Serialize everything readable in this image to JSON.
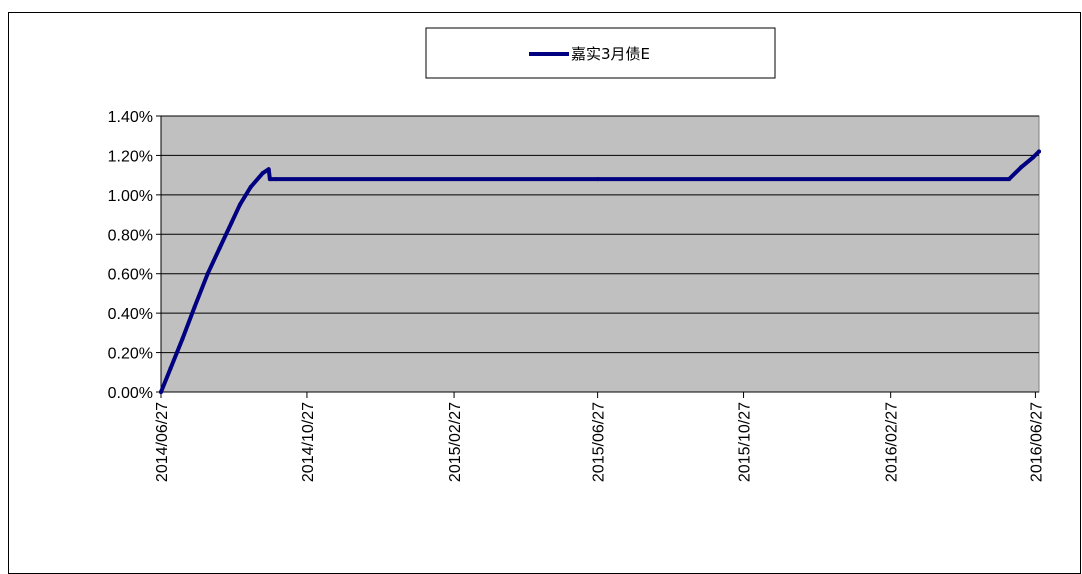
{
  "chart_data": {
    "type": "line",
    "title": "",
    "xlabel": "",
    "ylabel": "",
    "ylim": [
      0,
      1.4
    ],
    "y_ticks": [
      {
        "v": 0.0,
        "label": "0.00%"
      },
      {
        "v": 0.2,
        "label": "0.20%"
      },
      {
        "v": 0.4,
        "label": "0.40%"
      },
      {
        "v": 0.6,
        "label": "0.60%"
      },
      {
        "v": 0.8,
        "label": "0.80%"
      },
      {
        "v": 1.0,
        "label": "1.00%"
      },
      {
        "v": 1.2,
        "label": "1.20%"
      },
      {
        "v": 1.4,
        "label": "1.40%"
      }
    ],
    "xlim": [
      "2014-06-27",
      "2016-06-30"
    ],
    "x_ticks": [
      "2014/06/27",
      "2014/10/27",
      "2015/02/27",
      "2015/06/27",
      "2015/10/27",
      "2016/02/27",
      "2016/06/27"
    ],
    "grid": "horizontal",
    "legend_position": "top-center",
    "plot_background": "#c0c0c0",
    "series": [
      {
        "name": "嘉实3月债E",
        "color": "#000080",
        "x": [
          "2014-06-27",
          "2014-07-05",
          "2014-07-15",
          "2014-07-25",
          "2014-08-05",
          "2014-08-15",
          "2014-08-25",
          "2014-09-01",
          "2014-09-10",
          "2014-09-20",
          "2014-09-25",
          "2014-09-26",
          "2014-10-01",
          "2015-06-27",
          "2016-06-05",
          "2016-06-15",
          "2016-06-25",
          "2016-06-30"
        ],
        "values": [
          0.0,
          0.12,
          0.27,
          0.43,
          0.6,
          0.73,
          0.86,
          0.95,
          1.04,
          1.11,
          1.13,
          1.08,
          1.08,
          1.08,
          1.08,
          1.14,
          1.19,
          1.22
        ]
      }
    ]
  }
}
